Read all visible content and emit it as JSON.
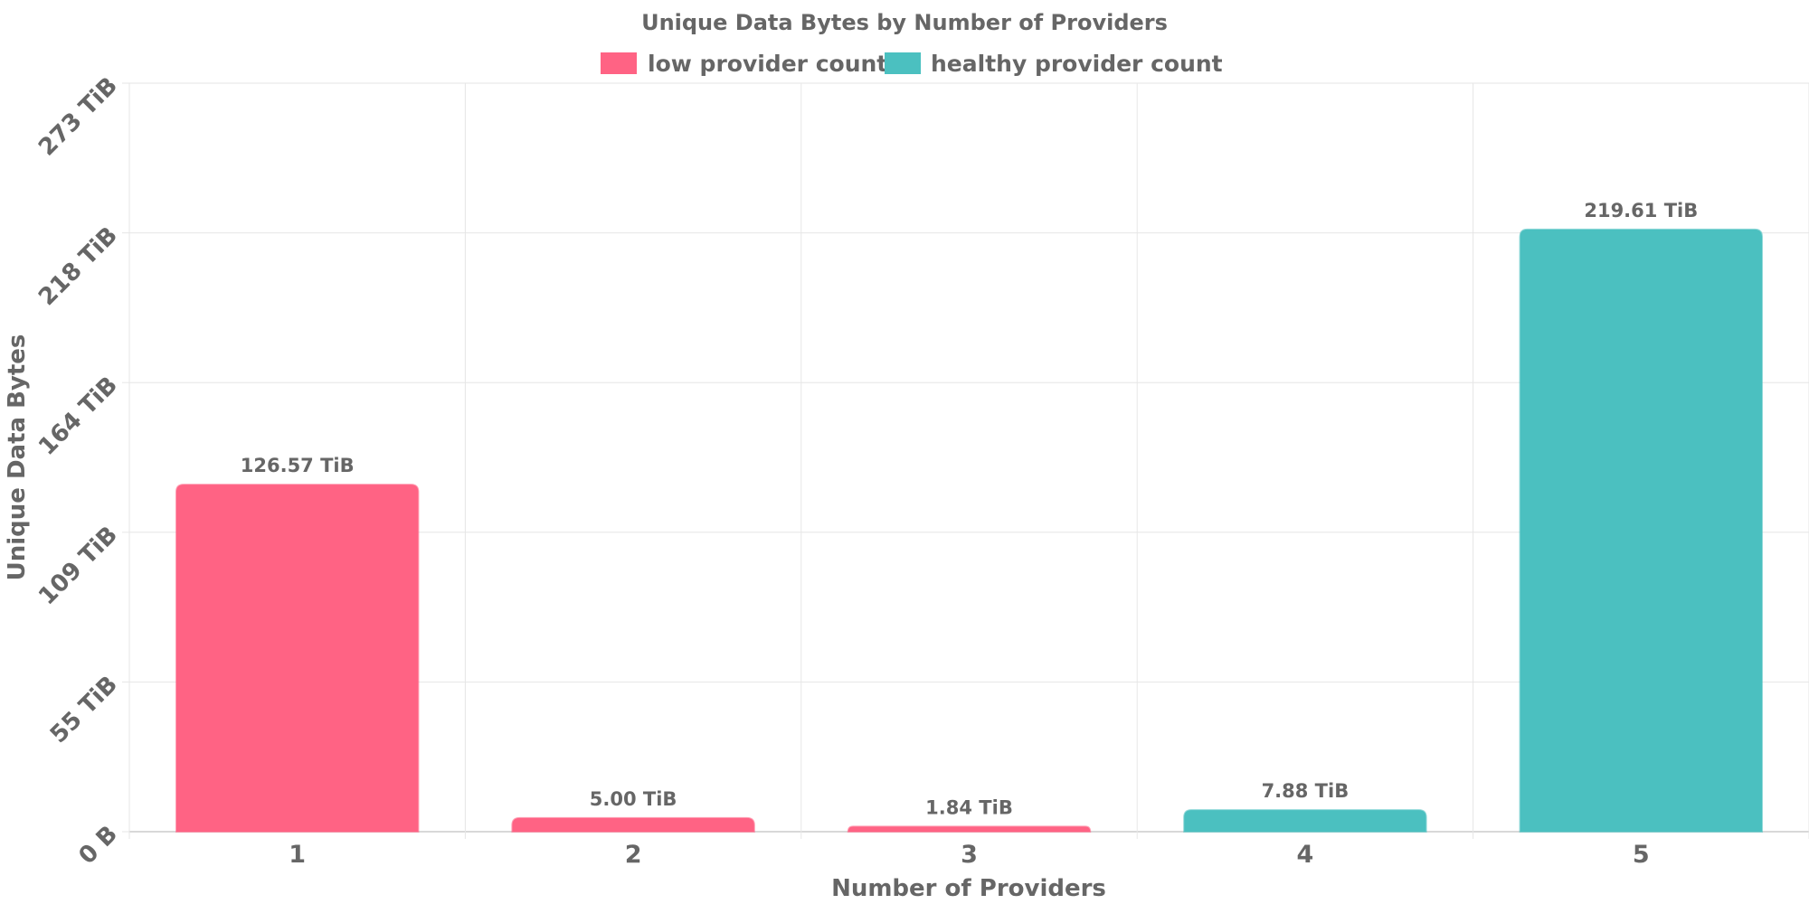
{
  "chart_data": {
    "type": "bar",
    "title": "Unique Data Bytes by Number of Providers",
    "xlabel": "Number of Providers",
    "ylabel": "Unique Data Bytes",
    "categories": [
      "1",
      "2",
      "3",
      "4",
      "5"
    ],
    "values": [
      126.57,
      5.0,
      1.84,
      7.88,
      219.61
    ],
    "unit": "TiB",
    "value_labels": [
      "126.57 TiB",
      "5.00 TiB",
      "1.84 TiB",
      "7.88 TiB",
      "219.61 TiB"
    ],
    "bar_groups": [
      "low provider count",
      "low provider count",
      "low provider count",
      "healthy provider count",
      "healthy provider count"
    ],
    "y_ticks": [
      0,
      54.6,
      109.2,
      163.8,
      218.4,
      273
    ],
    "y_tick_labels": [
      "0 B",
      "55 TiB",
      "109 TiB",
      "164 TiB",
      "218 TiB",
      "273 TiB"
    ],
    "ylim": [
      0,
      273
    ],
    "grid": true,
    "legend": {
      "position": "top-center",
      "items": [
        {
          "label": "low provider count",
          "color": "#ff6384"
        },
        {
          "label": "healthy provider count",
          "color": "#4bc0c0"
        }
      ]
    }
  }
}
